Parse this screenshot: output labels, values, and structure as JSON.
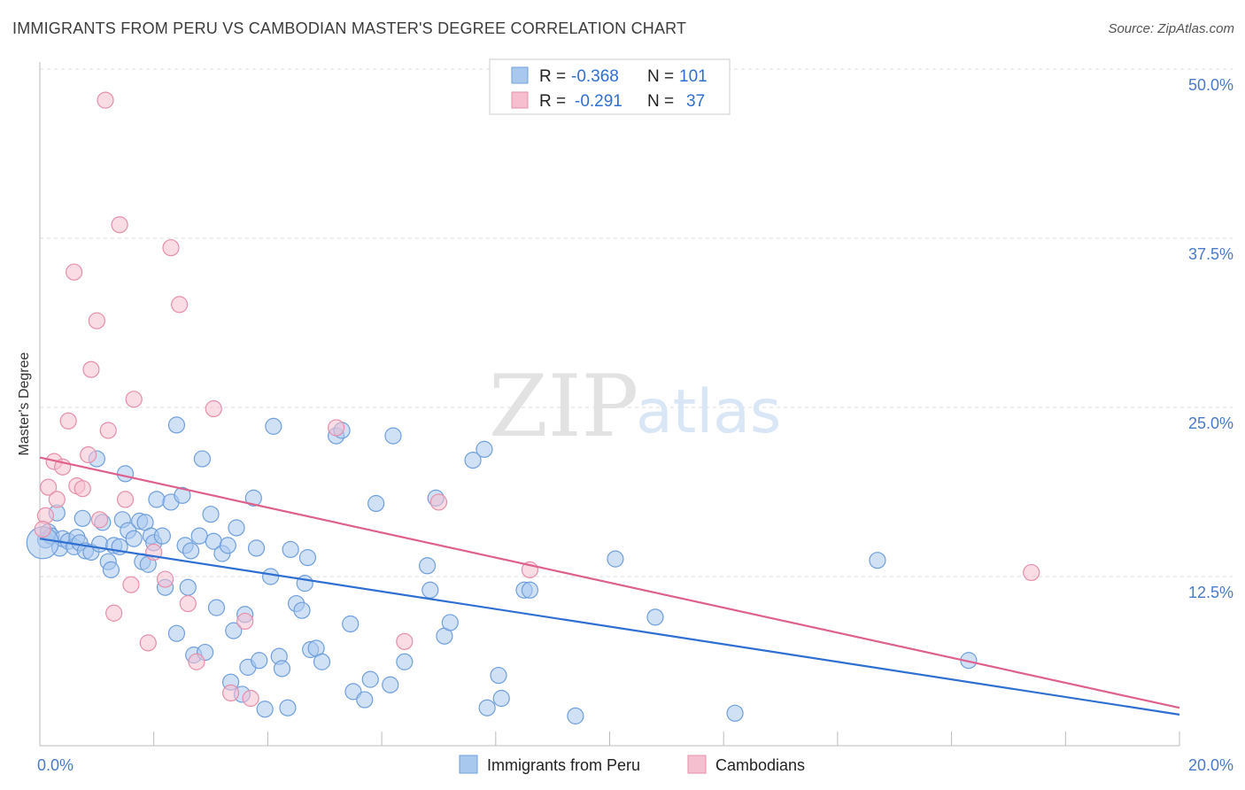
{
  "title": "IMMIGRANTS FROM PERU VS CAMBODIAN MASTER'S DEGREE CORRELATION CHART",
  "source": "Source: ZipAtlas.com",
  "watermark": {
    "zip": "ZIP",
    "atlas": "atlas"
  },
  "colors": {
    "blue_fill": "#a9c8ee",
    "blue_stroke": "#6f9fdc",
    "blue_line": "#2f6fd1",
    "pink_fill": "#f6bfd0",
    "pink_stroke": "#e68faa",
    "pink_line": "#e0608c",
    "tick": "#4a7ac9",
    "grid": "#dddddd"
  },
  "legend": {
    "r_label": "R =",
    "n_label": "N =",
    "rows": [
      {
        "r": "-0.368",
        "n": "101"
      },
      {
        "r": "-0.291",
        "n": "37"
      }
    ]
  },
  "chart_data": {
    "type": "scatter",
    "title": "IMMIGRANTS FROM PERU VS CAMBODIAN MASTER'S DEGREE CORRELATION CHART",
    "xlabel": "",
    "ylabel": "Master's Degree",
    "xlim": [
      0,
      20
    ],
    "ylim": [
      0,
      50
    ],
    "x_ticks": [
      {
        "v": 0,
        "label": "0.0%"
      },
      {
        "v": 20,
        "label": "20.0%"
      }
    ],
    "y_ticks": [
      {
        "v": 12.5,
        "label": "12.5%"
      },
      {
        "v": 25,
        "label": "25.0%"
      },
      {
        "v": 37.5,
        "label": "37.5%"
      },
      {
        "v": 50,
        "label": "50.0%"
      }
    ],
    "grid": true,
    "legend_position": "top-center",
    "series": [
      {
        "name": "Immigrants from Peru",
        "color": "#a9c8ee",
        "trend": {
          "x0": 0,
          "y0": 15.3,
          "x1": 20,
          "y1": 2.3
        },
        "points": [
          [
            0.1,
            15.2
          ],
          [
            0.15,
            15.8
          ],
          [
            0.2,
            15.5
          ],
          [
            0.3,
            17.2
          ],
          [
            0.35,
            14.6
          ],
          [
            0.4,
            15.3
          ],
          [
            0.5,
            15.1
          ],
          [
            0.6,
            14.7
          ],
          [
            0.65,
            15.4
          ],
          [
            0.7,
            15.0
          ],
          [
            0.75,
            16.8
          ],
          [
            0.8,
            14.4
          ],
          [
            0.9,
            14.3
          ],
          [
            1.0,
            21.2
          ],
          [
            1.05,
            14.9
          ],
          [
            1.1,
            16.5
          ],
          [
            1.2,
            13.6
          ],
          [
            1.25,
            13.0
          ],
          [
            1.3,
            14.8
          ],
          [
            1.4,
            14.7
          ],
          [
            1.45,
            16.7
          ],
          [
            1.5,
            20.1
          ],
          [
            1.55,
            15.9
          ],
          [
            1.65,
            15.3
          ],
          [
            1.75,
            16.6
          ],
          [
            1.8,
            13.6
          ],
          [
            1.85,
            16.5
          ],
          [
            1.9,
            13.4
          ],
          [
            1.95,
            15.5
          ],
          [
            2.0,
            15.0
          ],
          [
            2.05,
            18.2
          ],
          [
            2.15,
            15.5
          ],
          [
            2.2,
            11.7
          ],
          [
            2.3,
            18.0
          ],
          [
            2.4,
            23.7
          ],
          [
            2.4,
            8.3
          ],
          [
            2.5,
            18.5
          ],
          [
            2.55,
            14.8
          ],
          [
            2.6,
            11.7
          ],
          [
            2.65,
            14.4
          ],
          [
            2.7,
            6.7
          ],
          [
            2.8,
            15.5
          ],
          [
            2.85,
            21.2
          ],
          [
            2.9,
            6.9
          ],
          [
            3.0,
            17.1
          ],
          [
            3.05,
            15.1
          ],
          [
            3.1,
            10.2
          ],
          [
            3.2,
            14.2
          ],
          [
            3.3,
            14.8
          ],
          [
            3.35,
            4.7
          ],
          [
            3.4,
            8.5
          ],
          [
            3.45,
            16.1
          ],
          [
            3.55,
            3.8
          ],
          [
            3.6,
            9.7
          ],
          [
            3.65,
            5.8
          ],
          [
            3.75,
            18.3
          ],
          [
            3.8,
            14.6
          ],
          [
            3.85,
            6.3
          ],
          [
            3.95,
            2.7
          ],
          [
            4.05,
            12.5
          ],
          [
            4.1,
            23.6
          ],
          [
            4.2,
            6.6
          ],
          [
            4.25,
            5.7
          ],
          [
            4.35,
            2.8
          ],
          [
            4.4,
            14.5
          ],
          [
            4.5,
            10.5
          ],
          [
            4.6,
            10.0
          ],
          [
            4.65,
            12.0
          ],
          [
            4.7,
            13.9
          ],
          [
            4.75,
            7.1
          ],
          [
            4.85,
            7.2
          ],
          [
            4.95,
            6.2
          ],
          [
            5.2,
            22.9
          ],
          [
            5.3,
            23.3
          ],
          [
            5.45,
            9.0
          ],
          [
            5.5,
            4.0
          ],
          [
            5.7,
            3.4
          ],
          [
            5.8,
            4.9
          ],
          [
            5.9,
            17.9
          ],
          [
            6.15,
            4.5
          ],
          [
            6.2,
            22.9
          ],
          [
            6.4,
            6.2
          ],
          [
            6.8,
            13.3
          ],
          [
            6.85,
            11.5
          ],
          [
            6.95,
            18.3
          ],
          [
            7.1,
            8.1
          ],
          [
            7.2,
            9.1
          ],
          [
            7.6,
            21.1
          ],
          [
            7.8,
            21.9
          ],
          [
            7.85,
            2.8
          ],
          [
            8.05,
            5.2
          ],
          [
            8.1,
            3.5
          ],
          [
            8.5,
            11.5
          ],
          [
            8.6,
            11.5
          ],
          [
            9.4,
            2.2
          ],
          [
            10.1,
            13.8
          ],
          [
            10.8,
            9.5
          ],
          [
            12.2,
            2.4
          ],
          [
            14.7,
            13.7
          ],
          [
            16.3,
            6.3
          ],
          [
            0.05,
            15.0
          ]
        ]
      },
      {
        "name": "Cambodians",
        "color": "#f6bfd0",
        "trend": {
          "x0": 0,
          "y0": 21.3,
          "x1": 20,
          "y1": 2.8
        },
        "points": [
          [
            0.1,
            17.0
          ],
          [
            0.15,
            19.1
          ],
          [
            0.25,
            21.0
          ],
          [
            0.3,
            18.2
          ],
          [
            0.4,
            20.6
          ],
          [
            0.5,
            24.0
          ],
          [
            0.6,
            35.0
          ],
          [
            0.65,
            19.2
          ],
          [
            0.75,
            19.0
          ],
          [
            0.85,
            21.5
          ],
          [
            0.9,
            27.8
          ],
          [
            1.0,
            31.4
          ],
          [
            1.05,
            16.7
          ],
          [
            1.15,
            47.7
          ],
          [
            1.2,
            23.3
          ],
          [
            1.3,
            9.8
          ],
          [
            1.4,
            38.5
          ],
          [
            1.5,
            18.2
          ],
          [
            1.6,
            11.9
          ],
          [
            1.65,
            25.6
          ],
          [
            1.9,
            7.6
          ],
          [
            2.0,
            14.3
          ],
          [
            2.2,
            12.3
          ],
          [
            2.3,
            36.8
          ],
          [
            2.45,
            32.6
          ],
          [
            2.6,
            10.5
          ],
          [
            2.75,
            6.2
          ],
          [
            3.05,
            24.9
          ],
          [
            3.35,
            3.9
          ],
          [
            3.6,
            9.2
          ],
          [
            3.7,
            3.5
          ],
          [
            5.2,
            23.5
          ],
          [
            6.4,
            7.7
          ],
          [
            7.0,
            18.0
          ],
          [
            8.6,
            13.0
          ],
          [
            17.4,
            12.8
          ],
          [
            0.05,
            16.0
          ]
        ]
      }
    ]
  },
  "bottom_legend": [
    "Immigrants from Peru",
    "Cambodians"
  ]
}
